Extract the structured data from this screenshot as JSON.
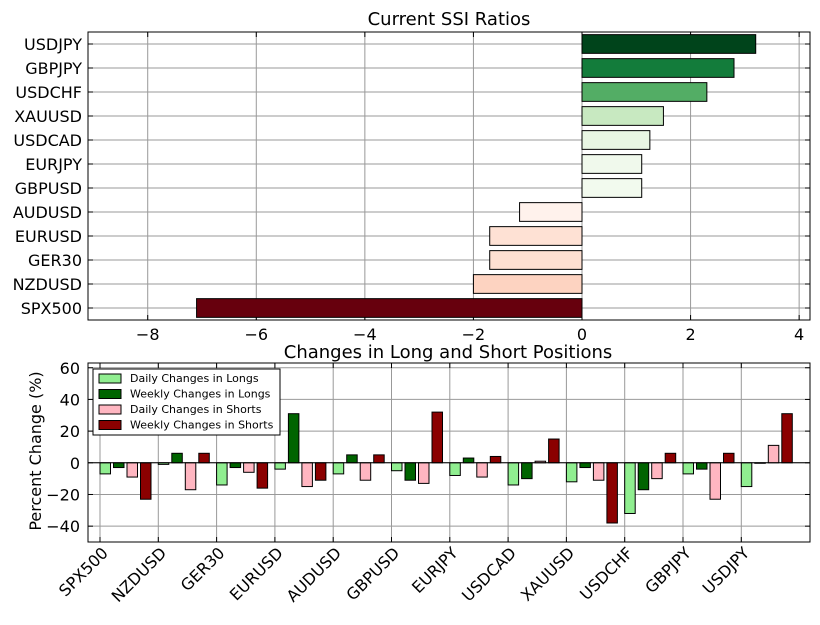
{
  "chart_data": [
    {
      "type": "bar",
      "orientation": "horizontal",
      "title": "Current SSI Ratios",
      "xlabel": "",
      "ylabel": "",
      "xlim": [
        -9.1,
        4.2
      ],
      "xticks": [
        -8,
        -6,
        -4,
        -2,
        0,
        2,
        4
      ],
      "xtick_labels": [
        "−8",
        "−6",
        "−4",
        "−2",
        "0",
        "2",
        "4"
      ],
      "grid": true,
      "categories": [
        "USDJPY",
        "GBPJPY",
        "USDCHF",
        "XAUUSD",
        "USDCAD",
        "EURJPY",
        "GBPUSD",
        "AUDUSD",
        "EURUSD",
        "GER30",
        "NZDUSD",
        "SPX500"
      ],
      "values": [
        3.2,
        2.8,
        2.3,
        1.5,
        1.25,
        1.1,
        1.1,
        -1.15,
        -1.7,
        -1.7,
        -2.0,
        -7.1
      ],
      "colors": [
        "#00441b",
        "#137c3b",
        "#53ad65",
        "#c8e9c1",
        "#e8f6e3",
        "#f0f9ec",
        "#f2faee",
        "#fff2ec",
        "#fee1d4",
        "#fee0d2",
        "#fdd3c1",
        "#67000d"
      ]
    },
    {
      "type": "bar",
      "title": "Changes in Long and Short Positions",
      "xlabel": "",
      "ylabel": "Percent Change (%)",
      "ylim": [
        -50,
        63
      ],
      "yticks": [
        -40,
        -20,
        0,
        20,
        40,
        60
      ],
      "ytick_labels": [
        "−40",
        "−20",
        "0",
        "20",
        "40",
        "60"
      ],
      "grid": true,
      "legend_position": "top-left",
      "categories": [
        "SPX500",
        "NZDUSD",
        "GER30",
        "EURUSD",
        "AUDUSD",
        "GBPUSD",
        "EURJPY",
        "USDCAD",
        "XAUUSD",
        "USDCHF",
        "GBPJPY",
        "USDJPY"
      ],
      "series": [
        {
          "name": "Daily Changes in Longs",
          "color": "#90ee90",
          "values": [
            -7,
            -1,
            -14,
            -4,
            -7,
            -5,
            -8,
            -14,
            -12,
            -32,
            -7,
            -15
          ]
        },
        {
          "name": "Weekly Changes in Longs",
          "color": "#006400",
          "values": [
            -3,
            6,
            -3,
            31,
            5,
            -11,
            3,
            -10,
            -3,
            -17,
            -4,
            0
          ]
        },
        {
          "name": "Daily Changes in Shorts",
          "color": "#ffb6c1",
          "values": [
            -9,
            -17,
            -6,
            -15,
            -11,
            -13,
            -9,
            1,
            -11,
            -10,
            -23,
            11
          ]
        },
        {
          "name": "Weekly Changes in Shorts",
          "color": "#8b0000",
          "values": [
            -23,
            6,
            -16,
            -11,
            5,
            32,
            4,
            15,
            -38,
            6,
            6,
            31
          ]
        }
      ]
    }
  ]
}
